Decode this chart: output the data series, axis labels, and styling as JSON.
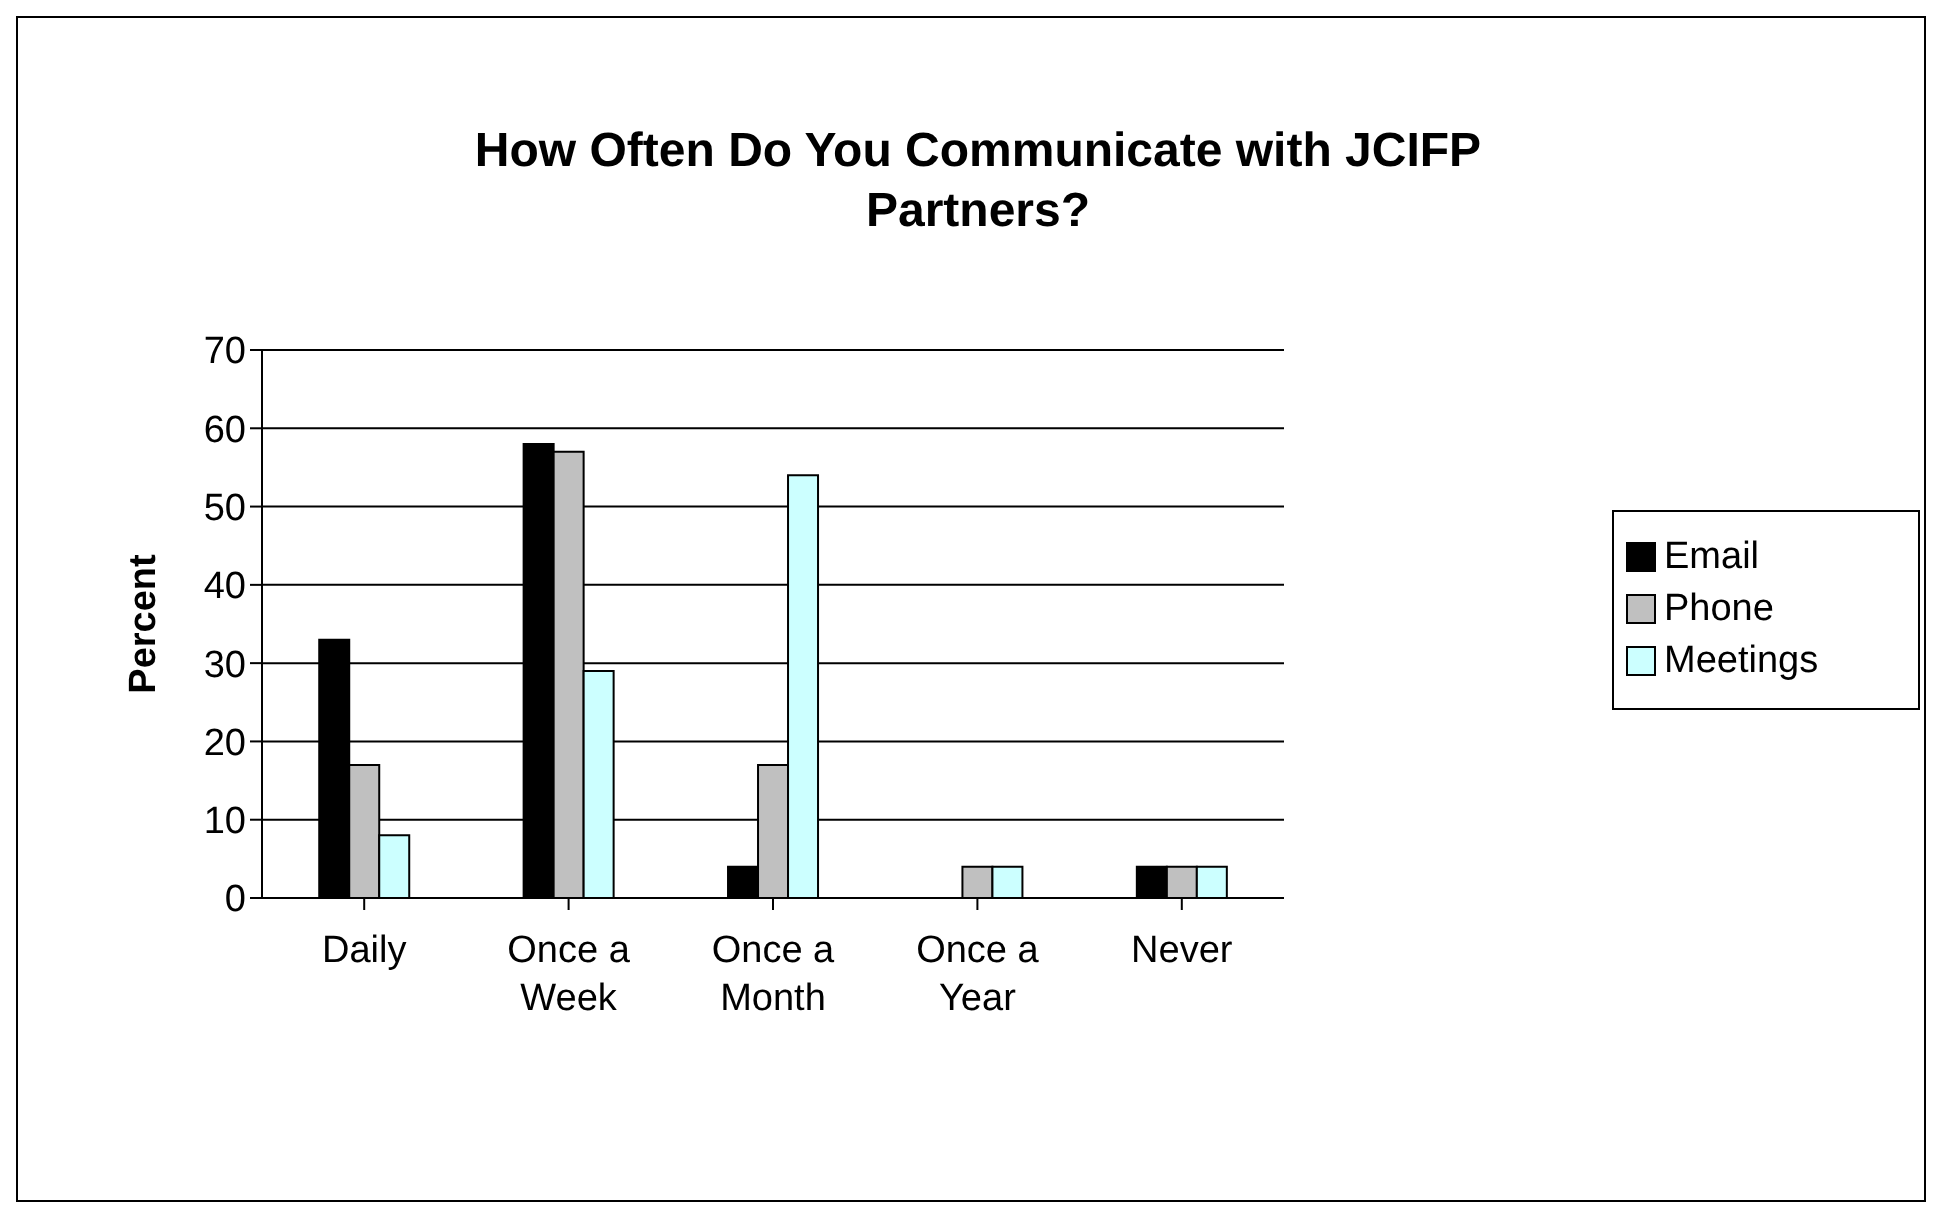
{
  "chart_data": {
    "type": "bar",
    "title": "How Often Do You Communicate with JCIFP Partners?",
    "ylabel": "Percent",
    "categories": [
      "Daily",
      "Once a Week",
      "Once a Month",
      "Once a Year",
      "Never"
    ],
    "series": [
      {
        "name": "Email",
        "color": "#000000",
        "values": [
          33,
          58,
          4,
          0,
          4
        ]
      },
      {
        "name": "Phone",
        "color": "#c0c0c0",
        "values": [
          17,
          57,
          17,
          4,
          4
        ]
      },
      {
        "name": "Meetings",
        "color": "#ccffff",
        "values": [
          8,
          29,
          54,
          4,
          4
        ]
      }
    ],
    "ylim": [
      0,
      70
    ],
    "yticks": [
      0,
      10,
      20,
      30,
      40,
      50,
      60,
      70
    ],
    "grid": "y",
    "legend": "right"
  }
}
